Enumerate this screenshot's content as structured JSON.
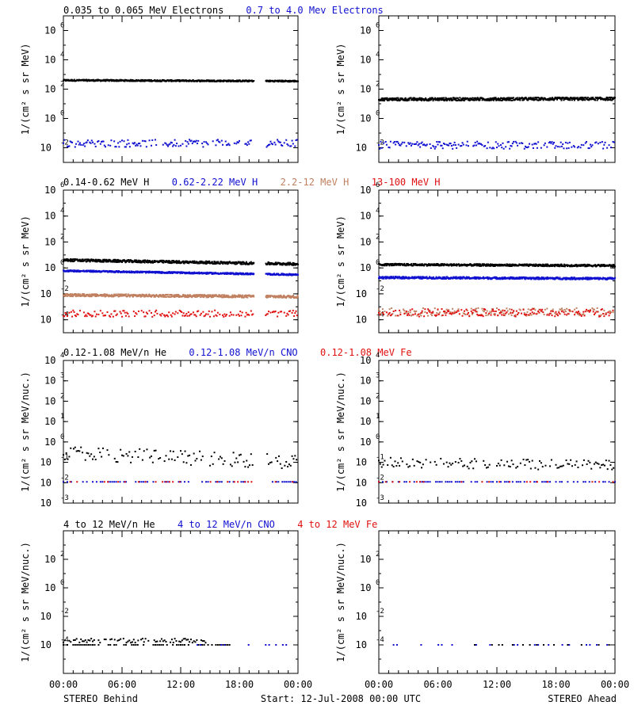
{
  "colors": {
    "black": "#000000",
    "blue": "#1010d0",
    "tan": "#c08060",
    "red": "#e01010"
  },
  "footer": {
    "left": "STEREO Behind",
    "center": "Start: 12-Jul-2008 00:00 UTC",
    "right": "STEREO Ahead"
  },
  "x_tick_labels": [
    "00:00",
    "06:00",
    "12:00",
    "18:00",
    "00:00"
  ],
  "ylabels": {
    "flux": "1/(cm² s sr MeV)",
    "nuc": "1/(cm² s sr MeV/nuc.)"
  },
  "rows": [
    {
      "titles": [
        {
          "text": "0.035 to 0.065 MeV Electrons",
          "color": "black"
        },
        {
          "text": "0.7 to 4.0 Mev Electrons",
          "color": "blue"
        }
      ]
    },
    {
      "titles": [
        {
          "text": "0.14-0.62 MeV H",
          "color": "black"
        },
        {
          "text": "0.62-2.22 MeV H",
          "color": "blue"
        },
        {
          "text": "2.2-12 MeV H",
          "color": "tan"
        },
        {
          "text": "13-100 MeV H",
          "color": "red"
        }
      ]
    },
    {
      "titles": [
        {
          "text": "0.12-1.08 MeV/n He",
          "color": "black"
        },
        {
          "text": "0.12-1.08 MeV/n CNO",
          "color": "blue"
        },
        {
          "text": "0.12-1.08 MeV Fe",
          "color": "red"
        }
      ]
    },
    {
      "titles": [
        {
          "text": "4 to 12 MeV/n He",
          "color": "black"
        },
        {
          "text": "4 to 12 MeV/n CNO",
          "color": "blue"
        },
        {
          "text": "4 to 12 MeV Fe",
          "color": "red"
        }
      ]
    }
  ],
  "chart_data": [
    {
      "type": "scatter",
      "spacecraft": "STEREO Behind",
      "row": 0,
      "col": 0,
      "ylabel": "1/(cm² s sr MeV)",
      "yscale": "log",
      "ylim": [
        0.001,
        10000000
      ],
      "yticks": [
        {
          "v": 0.01,
          "base": "10",
          "exp": "-2"
        },
        {
          "v": 1,
          "base": "10",
          "exp": "0"
        },
        {
          "v": 100,
          "base": "10",
          "exp": "2"
        },
        {
          "v": 10000,
          "base": "10",
          "exp": "4"
        },
        {
          "v": 1000000,
          "base": "10",
          "exp": "6"
        }
      ],
      "xlim_hours": [
        0,
        24
      ],
      "series": [
        {
          "color": "black",
          "points": "dense",
          "level": 400,
          "end_level": 350,
          "spread": 0.05,
          "gap": [
            19.5,
            20.7
          ]
        },
        {
          "color": "blue",
          "points": "sparse",
          "level": 0.02,
          "spread": 0.25,
          "gap": [
            19.5,
            20.7
          ]
        }
      ]
    },
    {
      "type": "scatter",
      "spacecraft": "STEREO Ahead",
      "row": 0,
      "col": 1,
      "ylabel": "1/(cm² s sr MeV)",
      "yscale": "log",
      "ylim": [
        0.001,
        10000000
      ],
      "yticks": [
        {
          "v": 0.01,
          "base": "10",
          "exp": "-2"
        },
        {
          "v": 1,
          "base": "10",
          "exp": "0"
        },
        {
          "v": 100,
          "base": "10",
          "exp": "2"
        },
        {
          "v": 10000,
          "base": "10",
          "exp": "4"
        },
        {
          "v": 1000000,
          "base": "10",
          "exp": "6"
        }
      ],
      "xlim_hours": [
        0,
        24
      ],
      "series": [
        {
          "color": "black",
          "points": "dense",
          "level": 20,
          "end_level": 22,
          "spread": 0.1
        },
        {
          "color": "blue",
          "points": "sparse",
          "level": 0.015,
          "spread": 0.25
        }
      ]
    },
    {
      "type": "scatter",
      "spacecraft": "STEREO Behind",
      "row": 1,
      "col": 0,
      "ylabel": "1/(cm² s sr MeV)",
      "yscale": "log",
      "ylim": [
        1e-05,
        1000000
      ],
      "yticks": [
        {
          "v": 0.0001,
          "base": "10",
          "exp": "-4"
        },
        {
          "v": 0.01,
          "base": "10",
          "exp": "-2"
        },
        {
          "v": 1,
          "base": "10",
          "exp": "0"
        },
        {
          "v": 100,
          "base": "10",
          "exp": "2"
        },
        {
          "v": 10000,
          "base": "10",
          "exp": "4"
        },
        {
          "v": 1000000,
          "base": "10",
          "exp": "6"
        }
      ],
      "xlim_hours": [
        0,
        24
      ],
      "series": [
        {
          "color": "black",
          "points": "dense",
          "level": 4,
          "end_level": 2,
          "spread": 0.1,
          "gap": [
            19.5,
            20.7
          ]
        },
        {
          "color": "blue",
          "points": "dense",
          "level": 0.6,
          "end_level": 0.3,
          "spread": 0.06,
          "gap": [
            19.5,
            20.7
          ]
        },
        {
          "color": "tan",
          "points": "dense",
          "level": 0.008,
          "end_level": 0.006,
          "spread": 0.1,
          "gap": [
            19.5,
            20.7
          ]
        },
        {
          "color": "red",
          "points": "sparse",
          "level": 0.0003,
          "spread": 0.25,
          "gap": [
            19.5,
            20.7
          ]
        }
      ]
    },
    {
      "type": "scatter",
      "spacecraft": "STEREO Ahead",
      "row": 1,
      "col": 1,
      "ylabel": "1/(cm² s sr MeV)",
      "yscale": "log",
      "ylim": [
        1e-05,
        1000000
      ],
      "yticks": [
        {
          "v": 0.0001,
          "base": "10",
          "exp": "-4"
        },
        {
          "v": 0.01,
          "base": "10",
          "exp": "-2"
        },
        {
          "v": 1,
          "base": "10",
          "exp": "0"
        },
        {
          "v": 100,
          "base": "10",
          "exp": "2"
        },
        {
          "v": 10000,
          "base": "10",
          "exp": "4"
        },
        {
          "v": 1000000,
          "base": "10",
          "exp": "6"
        }
      ],
      "xlim_hours": [
        0,
        24
      ],
      "series": [
        {
          "color": "black",
          "points": "dense",
          "level": 1.8,
          "end_level": 1.5,
          "spread": 0.08
        },
        {
          "color": "blue",
          "points": "dense",
          "level": 0.18,
          "end_level": 0.15,
          "spread": 0.08
        },
        {
          "color": "tan",
          "points": "sparse",
          "level": 0.0004,
          "spread": 0.3
        },
        {
          "color": "red",
          "points": "sparse",
          "level": 0.00035,
          "spread": 0.3
        }
      ]
    },
    {
      "type": "scatter",
      "spacecraft": "STEREO Behind",
      "row": 2,
      "col": 0,
      "ylabel": "1/(cm² s sr MeV/nuc.)",
      "yscale": "log",
      "ylim": [
        0.001,
        10000
      ],
      "yticks": [
        {
          "v": 0.001,
          "base": "10",
          "exp": "-3"
        },
        {
          "v": 0.01,
          "base": "10",
          "exp": "-2"
        },
        {
          "v": 0.1,
          "base": "10",
          "exp": "-1"
        },
        {
          "v": 1,
          "base": "10",
          "exp": "0"
        },
        {
          "v": 10,
          "base": "10",
          "exp": "1"
        },
        {
          "v": 100,
          "base": "10",
          "exp": "2"
        },
        {
          "v": 1000,
          "base": "10",
          "exp": "3"
        },
        {
          "v": 10000,
          "base": "10",
          "exp": "4"
        }
      ],
      "xlim_hours": [
        0,
        24
      ],
      "series": [
        {
          "color": "black",
          "points": "scattered",
          "level": 0.3,
          "end_level": 0.1,
          "spread": 0.35,
          "gap": [
            19.5,
            20.7
          ]
        },
        {
          "color": "blue",
          "points": "floor",
          "level": 0.011,
          "gap": [
            19.5,
            20.7
          ]
        },
        {
          "color": "red",
          "points": "floor_sparse",
          "level": 0.011,
          "gap": [
            19.5,
            20.7
          ]
        }
      ]
    },
    {
      "type": "scatter",
      "spacecraft": "STEREO Ahead",
      "row": 2,
      "col": 1,
      "ylabel": "1/(cm² s sr MeV/nuc.)",
      "yscale": "log",
      "ylim": [
        0.001,
        10000
      ],
      "yticks": [
        {
          "v": 0.001,
          "base": "10",
          "exp": "-3"
        },
        {
          "v": 0.01,
          "base": "10",
          "exp": "-2"
        },
        {
          "v": 0.1,
          "base": "10",
          "exp": "-1"
        },
        {
          "v": 1,
          "base": "10",
          "exp": "0"
        },
        {
          "v": 10,
          "base": "10",
          "exp": "1"
        },
        {
          "v": 100,
          "base": "10",
          "exp": "2"
        },
        {
          "v": 1000,
          "base": "10",
          "exp": "3"
        },
        {
          "v": 10000,
          "base": "10",
          "exp": "4"
        }
      ],
      "xlim_hours": [
        0,
        24
      ],
      "series": [
        {
          "color": "black",
          "points": "scattered",
          "level": 0.1,
          "end_level": 0.07,
          "spread": 0.25
        },
        {
          "color": "blue",
          "points": "floor",
          "level": 0.011
        },
        {
          "color": "red",
          "points": "floor_sparse",
          "level": 0.011
        }
      ]
    },
    {
      "type": "scatter",
      "spacecraft": "STEREO Behind",
      "row": 3,
      "col": 0,
      "ylabel": "1/(cm² s sr MeV/nuc.)",
      "yscale": "log",
      "ylim": [
        1e-06,
        10000
      ],
      "yticks": [
        {
          "v": 0.0001,
          "base": "10",
          "exp": "-4"
        },
        {
          "v": 0.01,
          "base": "10",
          "exp": "-2"
        },
        {
          "v": 1,
          "base": "10",
          "exp": "0"
        },
        {
          "v": 100,
          "base": "10",
          "exp": "2"
        }
      ],
      "xlim_hours": [
        0,
        24
      ],
      "series": [
        {
          "color": "black",
          "points": "floor",
          "level": 0.0001,
          "until": 17
        },
        {
          "color": "black",
          "points": "scattered",
          "level": 0.0002,
          "spread": 0.15,
          "until": 15
        },
        {
          "color": "blue",
          "points": "floor_sparse",
          "level": 0.0001,
          "from": 13
        }
      ]
    },
    {
      "type": "scatter",
      "spacecraft": "STEREO Ahead",
      "row": 3,
      "col": 1,
      "ylabel": "1/(cm² s sr MeV/nuc.)",
      "yscale": "log",
      "ylim": [
        1e-06,
        10000
      ],
      "yticks": [
        {
          "v": 0.0001,
          "base": "10",
          "exp": "-4"
        },
        {
          "v": 0.01,
          "base": "10",
          "exp": "-2"
        },
        {
          "v": 1,
          "base": "10",
          "exp": "0"
        },
        {
          "v": 100,
          "base": "10",
          "exp": "2"
        }
      ],
      "xlim_hours": [
        0,
        24
      ],
      "series": [
        {
          "color": "blue",
          "points": "floor_sparse",
          "level": 0.0001,
          "from": 1.5
        },
        {
          "color": "black",
          "points": "floor_sparse",
          "level": 0.0001,
          "from": 8
        }
      ]
    }
  ]
}
